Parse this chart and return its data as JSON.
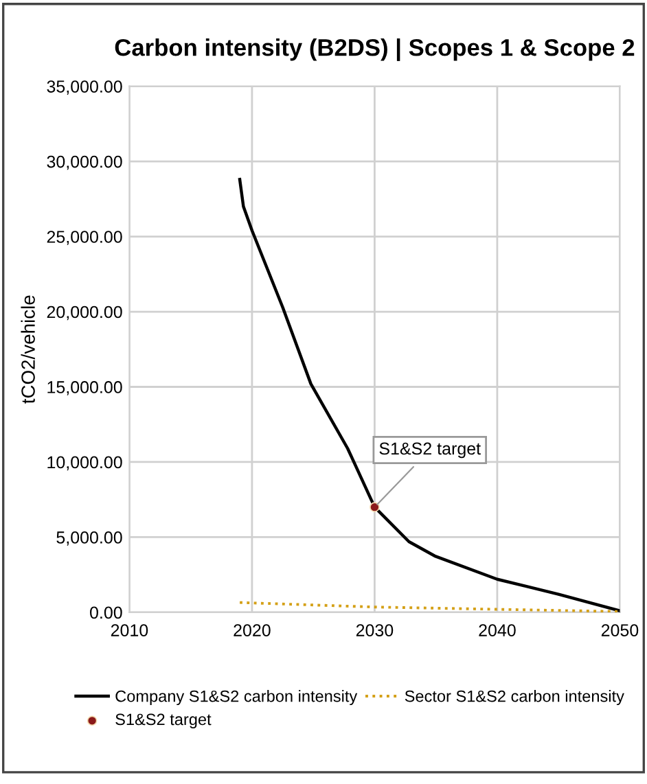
{
  "chart_data": {
    "type": "line",
    "title": "Carbon intensity (B2DS) | Scopes 1 & Scope 2",
    "ylabel": "tCO2/vehicle",
    "xlim": [
      2010,
      2050
    ],
    "xticks": [
      2010,
      2020,
      2030,
      2040,
      2050
    ],
    "ylim": [
      0,
      35000
    ],
    "yticks": [
      {
        "value": 0,
        "label": "0.00"
      },
      {
        "value": 5000,
        "label": "5,000.00"
      },
      {
        "value": 10000,
        "label": "10,000.00"
      },
      {
        "value": 15000,
        "label": "15,000.00"
      },
      {
        "value": 20000,
        "label": "20,000.00"
      },
      {
        "value": 25000,
        "label": "25,000.00"
      },
      {
        "value": 30000,
        "label": "30,000.00"
      },
      {
        "value": 35000,
        "label": "35,000.00"
      }
    ],
    "grid": true,
    "legend": "bottom",
    "annotations": [
      {
        "text": "S1&S2 target",
        "x": 2030,
        "y": 7000
      }
    ],
    "series": [
      {
        "name": "Company S1&S2 carbon intensity",
        "color": "#000000",
        "line_style": "solid",
        "marker": "none",
        "x": [
          2019,
          2019.3,
          2020,
          2022.5,
          2024.8,
          2027.8,
          2030,
          2032.8,
          2034.9,
          2040,
          2045,
          2050
        ],
        "values": [
          28800,
          27000,
          25400,
          20300,
          15200,
          10900,
          7000,
          4700,
          3750,
          2200,
          1200,
          100
        ]
      },
      {
        "name": "Sector S1&S2 carbon intensity",
        "color": "#d4a017",
        "line_style": "dotted",
        "marker": "none",
        "x": [
          2019,
          2030,
          2040,
          2050
        ],
        "values": [
          650,
          350,
          200,
          50
        ]
      },
      {
        "name": "S1&S2 target",
        "type": "scatter",
        "color": "#8b1a1a",
        "marker": "circle",
        "x": [
          2030
        ],
        "values": [
          7000
        ]
      }
    ]
  }
}
